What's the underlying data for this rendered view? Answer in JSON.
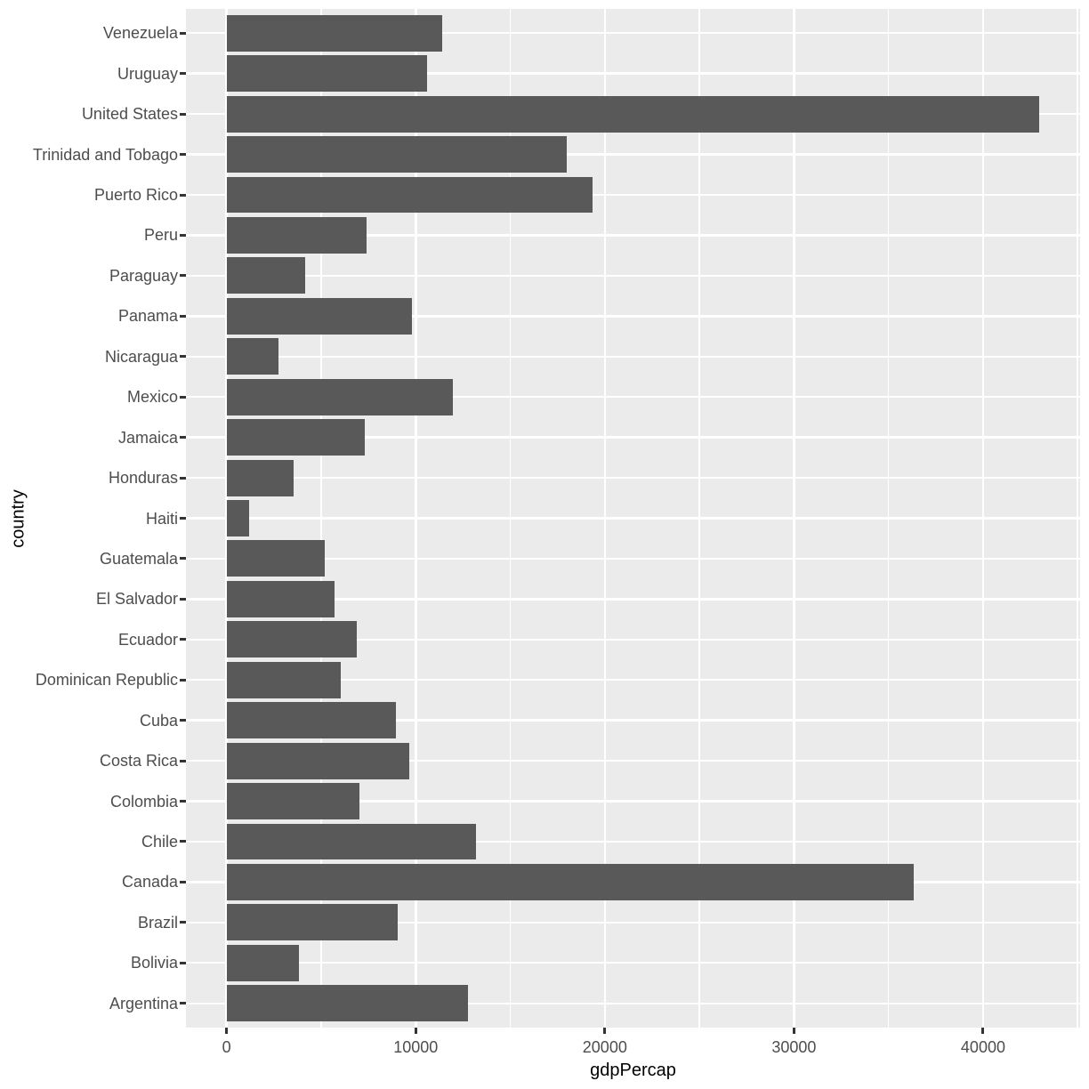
{
  "chart_data": {
    "type": "bar",
    "orientation": "horizontal",
    "title": "",
    "xlabel": "gdpPercap",
    "ylabel": "country",
    "categories": [
      "Venezuela",
      "Uruguay",
      "United States",
      "Trinidad and Tobago",
      "Puerto Rico",
      "Peru",
      "Paraguay",
      "Panama",
      "Nicaragua",
      "Mexico",
      "Jamaica",
      "Honduras",
      "Haiti",
      "Guatemala",
      "El Salvador",
      "Ecuador",
      "Dominican Republic",
      "Cuba",
      "Costa Rica",
      "Colombia",
      "Chile",
      "Canada",
      "Brazil",
      "Bolivia",
      "Argentina"
    ],
    "values": [
      11416,
      10612,
      42952,
      18009,
      19329,
      7409,
      4173,
      9809,
      2749,
      11978,
      7321,
      3548,
      1202,
      5186,
      5728,
      6873,
      6025,
      8948,
      9645,
      7007,
      13172,
      36319,
      9066,
      3822,
      12779
    ],
    "x_tick_labels": [
      "0",
      "10000",
      "20000",
      "30000",
      "40000"
    ],
    "x_ticks": [
      0,
      10000,
      20000,
      30000,
      40000
    ],
    "x_minor_gridlines": [
      5000,
      15000,
      25000,
      35000,
      45000
    ],
    "x_range": [
      -2150,
      45130
    ],
    "grid": true,
    "legend": false,
    "colors": {
      "bar_fill": "#595959",
      "panel_background": "#EBEBEB",
      "gridline": "#FFFFFF",
      "axis_text": "#4D4D4D",
      "axis_title": "#000000",
      "tick_mark": "#333333",
      "page_background": "#FFFFFF"
    }
  }
}
